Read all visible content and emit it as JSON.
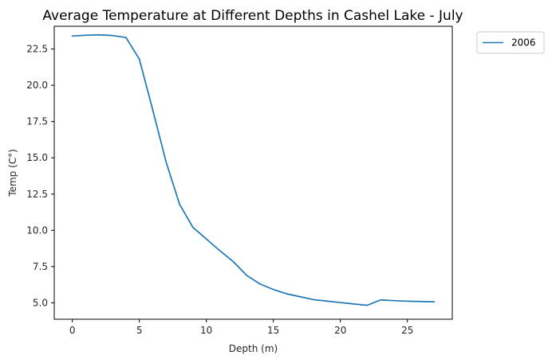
{
  "chart_data": {
    "type": "line",
    "title": "Average Temperature at Different Depths in Cashel Lake - July",
    "xlabel": "Depth (m)",
    "ylabel": "Temp (C°)",
    "xlim": [
      -1.35,
      28.35
    ],
    "ylim": [
      3.87,
      24.07
    ],
    "x_ticks": [
      0,
      5,
      10,
      15,
      20,
      25
    ],
    "y_ticks": [
      5.0,
      7.5,
      10.0,
      12.5,
      15.0,
      17.5,
      20.0,
      22.5
    ],
    "x_tick_labels": [
      "0",
      "5",
      "10",
      "15",
      "20",
      "25"
    ],
    "y_tick_labels": [
      "5.0",
      "7.5",
      "10.0",
      "12.5",
      "15.0",
      "17.5",
      "20.0",
      "22.5"
    ],
    "grid": false,
    "legend_position": "outside-top-right",
    "series": [
      {
        "name": "2006",
        "color": "#1f77b4",
        "x": [
          0,
          1,
          2,
          3,
          4,
          5,
          6,
          7,
          8,
          9,
          10,
          11,
          12,
          13,
          14,
          15,
          16,
          17,
          18,
          19,
          20,
          21,
          22,
          23,
          24,
          25,
          26,
          27
        ],
        "y": [
          23.4,
          23.45,
          23.48,
          23.43,
          23.3,
          21.8,
          18.3,
          14.7,
          11.8,
          10.2,
          9.4,
          8.6,
          7.85,
          6.9,
          6.3,
          5.92,
          5.62,
          5.42,
          5.22,
          5.12,
          5.02,
          4.92,
          4.83,
          5.2,
          5.15,
          5.11,
          5.09,
          5.07
        ]
      }
    ]
  }
}
